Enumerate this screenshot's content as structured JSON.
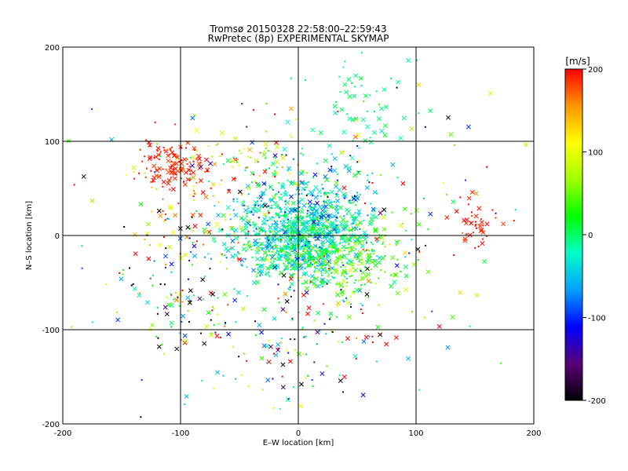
{
  "chart_data": {
    "type": "scatter",
    "title": "Tromsø 20150328 22:58:00–22:59:43",
    "subtitle": "RwPretec (8p) EXPERIMENTAL SKYMAP",
    "xlabel": "E–W location [km]",
    "ylabel": "N–S location [km]",
    "xlim": [
      -200,
      200
    ],
    "ylim": [
      -200,
      200
    ],
    "x_ticks": [
      "-200",
      "-100",
      "0",
      "100",
      "200"
    ],
    "y_ticks": [
      "200",
      "100",
      "0",
      "-100",
      "-200"
    ],
    "grid": true,
    "markers": [
      "dot",
      "x"
    ],
    "colorbar": {
      "label": "[m/s]",
      "range": [
        -200,
        200
      ],
      "ticks": [
        "200",
        "100",
        "0",
        "-100",
        "-200"
      ],
      "colormap": [
        "#000000",
        "#5a0078",
        "#0000ff",
        "#00a0ff",
        "#00ffc8",
        "#00ff00",
        "#a0ff00",
        "#ffff00",
        "#ff9600",
        "#ff0000"
      ]
    },
    "clusters": [
      {
        "center": [
          0,
          -5
        ],
        "spread": [
          28,
          22
        ],
        "count": 900,
        "velocity": -20,
        "v_spread": 35
      },
      {
        "center": [
          10,
          30
        ],
        "spread": [
          30,
          25
        ],
        "count": 250,
        "velocity": -40,
        "v_spread": 40
      },
      {
        "center": [
          40,
          -30
        ],
        "spread": [
          25,
          20
        ],
        "count": 200,
        "velocity": 40,
        "v_spread": 30
      },
      {
        "center": [
          -110,
          75
        ],
        "spread": [
          15,
          12
        ],
        "count": 120,
        "velocity": 190,
        "v_spread": 10
      },
      {
        "center": [
          -90,
          30
        ],
        "spread": [
          25,
          30
        ],
        "count": 80,
        "velocity": 150,
        "v_spread": 60
      },
      {
        "center": [
          150,
          15
        ],
        "spread": [
          10,
          15
        ],
        "count": 40,
        "velocity": 190,
        "v_spread": 10
      },
      {
        "center": [
          -40,
          80
        ],
        "spread": [
          25,
          15
        ],
        "count": 60,
        "velocity": 90,
        "v_spread": 60
      },
      {
        "center": [
          50,
          140
        ],
        "spread": [
          25,
          30
        ],
        "count": 60,
        "velocity": -5,
        "v_spread": 20
      },
      {
        "center": [
          -100,
          -60
        ],
        "spread": [
          25,
          30
        ],
        "count": 90,
        "velocity": -30,
        "v_spread": 150
      },
      {
        "center": [
          0,
          -120
        ],
        "spread": [
          40,
          30
        ],
        "count": 100,
        "velocity": -20,
        "v_spread": 150
      },
      {
        "center": [
          0,
          0
        ],
        "spread": [
          110,
          90
        ],
        "count": 260,
        "velocity": 0,
        "v_spread": 150
      }
    ]
  }
}
